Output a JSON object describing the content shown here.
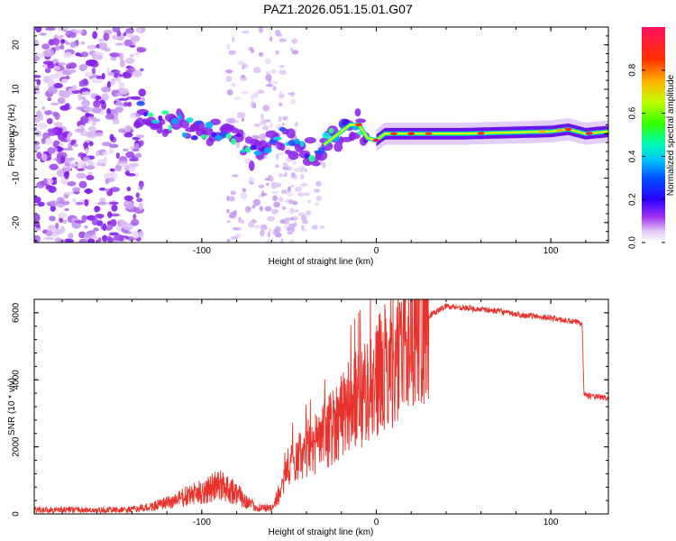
{
  "title": "PAZ1.2026.051.15.01.G07",
  "chart_data": [
    {
      "type": "heatmap",
      "xlabel": "Height of straight line (km)",
      "ylabel": "Frequency (Hz)",
      "xlim": [
        -196,
        133
      ],
      "ylim": [
        -24.5,
        24
      ],
      "x_ticks": [
        -100,
        0,
        100
      ],
      "y_ticks": [
        -20,
        -10,
        0,
        10,
        20
      ],
      "colorbar": {
        "label": "Normalized spectral amplitude",
        "range": [
          0,
          1
        ],
        "ticks": [
          "0.0",
          "0.2",
          "0.4",
          "0.6",
          "0.8"
        ]
      },
      "ridge": [
        {
          "x": -135,
          "f": 5
        },
        {
          "x": -120,
          "f": 3
        },
        {
          "x": -105,
          "f": 1
        },
        {
          "x": -90,
          "f": 0
        },
        {
          "x": -80,
          "f": -2
        },
        {
          "x": -70,
          "f": -5
        },
        {
          "x": -62,
          "f": -2
        },
        {
          "x": -55,
          "f": 0
        },
        {
          "x": -45,
          "f": -3
        },
        {
          "x": -35,
          "f": -4
        },
        {
          "x": -25,
          "f": -1
        },
        {
          "x": -15,
          "f": 2
        },
        {
          "x": -10,
          "f": 2
        },
        {
          "x": -5,
          "f": -1
        },
        {
          "x": 0,
          "f": -1.5
        },
        {
          "x": 5,
          "f": 0
        },
        {
          "x": 50,
          "f": 0
        },
        {
          "x": 100,
          "f": 0.5
        },
        {
          "x": 110,
          "f": 1
        },
        {
          "x": 120,
          "f": 0
        },
        {
          "x": 133,
          "f": 0.5
        }
      ]
    },
    {
      "type": "line",
      "xlabel": "Height of straight line (km)",
      "ylabel": "SNR (10 * v/v)",
      "xlim": [
        -196,
        133
      ],
      "ylim": [
        0,
        6400
      ],
      "x_ticks": [
        -100,
        0,
        100
      ],
      "y_ticks": [
        0,
        2000,
        4000,
        6000
      ],
      "series": [
        {
          "name": "SNR",
          "color": "#e8322b",
          "x": [
            -196,
            -180,
            -160,
            -140,
            -130,
            -120,
            -110,
            -100,
            -90,
            -85,
            -80,
            -70,
            -60,
            -55,
            -50,
            -40,
            -30,
            -20,
            -10,
            0,
            10,
            20,
            30,
            40,
            50,
            60,
            70,
            80,
            90,
            100,
            110,
            118,
            119,
            120,
            125,
            133
          ],
          "y": [
            120,
            130,
            110,
            130,
            200,
            320,
            500,
            650,
            850,
            800,
            600,
            220,
            150,
            600,
            1500,
            1900,
            2300,
            3000,
            3500,
            4000,
            4700,
            5400,
            5900,
            6200,
            6150,
            6100,
            6050,
            5950,
            5900,
            5850,
            5750,
            5700,
            3600,
            3550,
            3500,
            3450
          ]
        }
      ]
    }
  ]
}
